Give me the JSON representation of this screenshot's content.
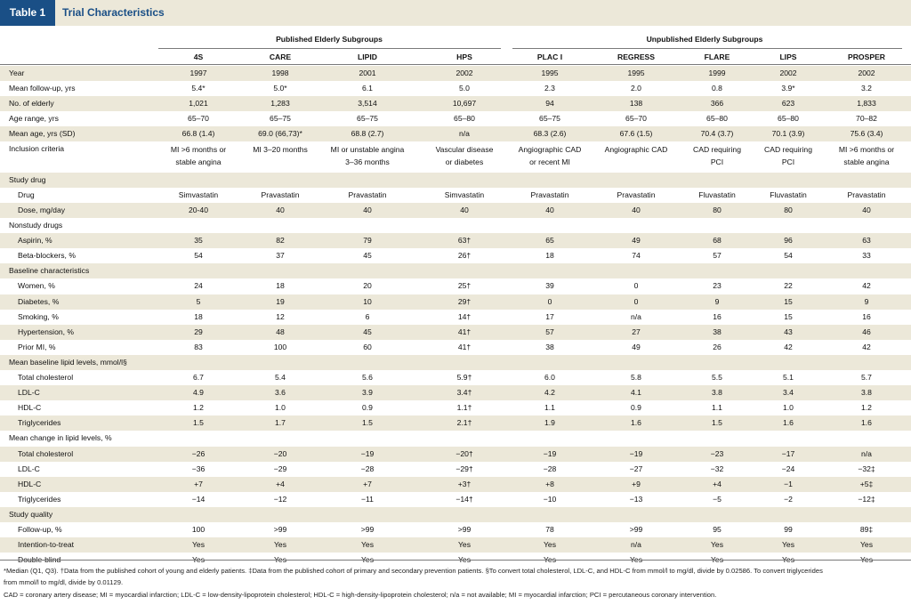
{
  "table": {
    "number": "Table 1",
    "title": "Trial Characteristics",
    "groups": [
      "Published Elderly Subgroups",
      "Unpublished Elderly Subgroups"
    ],
    "columns": [
      "4S",
      "CARE",
      "LIPID",
      "HPS",
      "PLAC I",
      "REGRESS",
      "FLARE",
      "LIPS",
      "PROSPER"
    ],
    "rows": [
      {
        "type": "data",
        "label": "Year",
        "values": [
          "1997",
          "1998",
          "2001",
          "2002",
          "1995",
          "1995",
          "1999",
          "2002",
          "2002"
        ]
      },
      {
        "type": "data",
        "label": "Mean follow-up, yrs",
        "values": [
          "5.4*",
          "5.0*",
          "6.1",
          "5.0",
          "2.3",
          "2.0",
          "0.8",
          "3.9*",
          "3.2"
        ]
      },
      {
        "type": "data",
        "label": "No. of elderly",
        "values": [
          "1,021",
          "1,283",
          "3,514",
          "10,697",
          "94",
          "138",
          "366",
          "623",
          "1,833"
        ]
      },
      {
        "type": "data",
        "label": "Age range, yrs",
        "values": [
          "65–70",
          "65–75",
          "65–75",
          "65–80",
          "65–75",
          "65–70",
          "65–80",
          "65–80",
          "70–82"
        ]
      },
      {
        "type": "data",
        "label": "Mean age, yrs (SD)",
        "values": [
          "66.8 (1.4)",
          "69.0 (66,73)*",
          "68.8 (2.7)",
          "n/a",
          "68.3 (2.6)",
          "67.6 (1.5)",
          "70.4 (3.7)",
          "70.1 (3.9)",
          "75.6 (3.4)"
        ]
      },
      {
        "type": "data2",
        "label": "Inclusion criteria",
        "values": [
          [
            "MI >6 months or",
            "stable angina"
          ],
          [
            "MI 3–20 months",
            ""
          ],
          [
            "MI or unstable angina",
            "3–36 months"
          ],
          [
            "Vascular disease",
            "or diabetes"
          ],
          [
            "Angiographic CAD",
            "or recent MI"
          ],
          [
            "Angiographic CAD",
            ""
          ],
          [
            "CAD requiring",
            "PCI"
          ],
          [
            "CAD requiring",
            "PCI"
          ],
          [
            "MI >6 months or",
            "stable angina"
          ]
        ]
      },
      {
        "type": "section",
        "label": "Study drug"
      },
      {
        "type": "data",
        "label": "Drug",
        "values": [
          "Simvastatin",
          "Pravastatin",
          "Pravastatin",
          "Simvastatin",
          "Pravastatin",
          "Pravastatin",
          "Fluvastatin",
          "Fluvastatin",
          "Pravastatin"
        ]
      },
      {
        "type": "data",
        "label": "Dose, mg/day",
        "values": [
          "20-40",
          "40",
          "40",
          "40",
          "40",
          "40",
          "80",
          "80",
          "40"
        ]
      },
      {
        "type": "section",
        "label": "Nonstudy drugs"
      },
      {
        "type": "data",
        "label": "Aspirin, %",
        "values": [
          "35",
          "82",
          "79",
          "63†",
          "65",
          "49",
          "68",
          "96",
          "63"
        ]
      },
      {
        "type": "data",
        "label": "Beta-blockers, %",
        "values": [
          "54",
          "37",
          "45",
          "26†",
          "18",
          "74",
          "57",
          "54",
          "33"
        ]
      },
      {
        "type": "section",
        "label": "Baseline characteristics"
      },
      {
        "type": "data",
        "label": "Women, %",
        "values": [
          "24",
          "18",
          "20",
          "25†",
          "39",
          "0",
          "23",
          "22",
          "42"
        ]
      },
      {
        "type": "data",
        "label": "Diabetes, %",
        "values": [
          "5",
          "19",
          "10",
          "29†",
          "0",
          "0",
          "9",
          "15",
          "9"
        ]
      },
      {
        "type": "data",
        "label": "Smoking, %",
        "values": [
          "18",
          "12",
          "6",
          "14†",
          "17",
          "n/a",
          "16",
          "15",
          "16"
        ]
      },
      {
        "type": "data",
        "label": "Hypertension, %",
        "values": [
          "29",
          "48",
          "45",
          "41†",
          "57",
          "27",
          "38",
          "43",
          "46"
        ]
      },
      {
        "type": "data",
        "label": "Prior MI, %",
        "values": [
          "83",
          "100",
          "60",
          "41†",
          "38",
          "49",
          "26",
          "42",
          "42"
        ]
      },
      {
        "type": "section",
        "label": "Mean baseline lipid levels, mmol/l§"
      },
      {
        "type": "data",
        "label": "Total cholesterol",
        "values": [
          "6.7",
          "5.4",
          "5.6",
          "5.9†",
          "6.0",
          "5.8",
          "5.5",
          "5.1",
          "5.7"
        ]
      },
      {
        "type": "data",
        "label": "LDL-C",
        "values": [
          "4.9",
          "3.6",
          "3.9",
          "3.4†",
          "4.2",
          "4.1",
          "3.8",
          "3.4",
          "3.8"
        ]
      },
      {
        "type": "data",
        "label": "HDL-C",
        "values": [
          "1.2",
          "1.0",
          "0.9",
          "1.1†",
          "1.1",
          "0.9",
          "1.1",
          "1.0",
          "1.2"
        ]
      },
      {
        "type": "data",
        "label": "Triglycerides",
        "values": [
          "1.5",
          "1.7",
          "1.5",
          "2.1†",
          "1.9",
          "1.6",
          "1.5",
          "1.6",
          "1.6"
        ]
      },
      {
        "type": "section",
        "label": "Mean change in lipid levels, %"
      },
      {
        "type": "data",
        "label": "Total cholesterol",
        "values": [
          "−26",
          "−20",
          "−19",
          "−20†",
          "−19",
          "−19",
          "−23",
          "−17",
          "n/a"
        ]
      },
      {
        "type": "data",
        "label": "LDL-C",
        "values": [
          "−36",
          "−29",
          "−28",
          "−29†",
          "−28",
          "−27",
          "−32",
          "−24",
          "−32‡"
        ]
      },
      {
        "type": "data",
        "label": "HDL-C",
        "values": [
          "+7",
          "+4",
          "+7",
          "+3†",
          "+8",
          "+9",
          "+4",
          "−1",
          "+5‡"
        ]
      },
      {
        "type": "data",
        "label": "Triglycerides",
        "values": [
          "−14",
          "−12",
          "−11",
          "−14†",
          "−10",
          "−13",
          "−5",
          "−2",
          "−12‡"
        ]
      },
      {
        "type": "section",
        "label": "Study quality"
      },
      {
        "type": "data",
        "label": "Follow-up, %",
        "values": [
          "100",
          ">99",
          ">99",
          ">99",
          "78",
          ">99",
          "95",
          "99",
          "89‡"
        ]
      },
      {
        "type": "data",
        "label": "Intention-to-treat",
        "values": [
          "Yes",
          "Yes",
          "Yes",
          "Yes",
          "Yes",
          "n/a",
          "Yes",
          "Yes",
          "Yes"
        ]
      },
      {
        "type": "data",
        "label": "Double-blind",
        "values": [
          "Yes",
          "Yes",
          "Yes",
          "Yes",
          "Yes",
          "Yes",
          "Yes",
          "Yes",
          "Yes"
        ]
      }
    ],
    "footnotes": [
      "*Median (Q1, Q3). †Data from the published cohort of young and elderly patients. ‡Data from the published cohort of primary and secondary prevention patients. §To convert total cholesterol, LDL-C, and HDL-C from mmol/l to mg/dl, divide by 0.02586. To convert triglycerides",
      "from mmol/l to mg/dl, divide by 0.01129.",
      "CAD = coronary artery disease; MI = myocardial infarction; LDL-C = low-density-lipoprotein cholesterol; HDL-C = high-density-lipoprotein cholesterol; n/a = not available; MI = myocardial infarction; PCI = percutaneous coronary intervention."
    ]
  }
}
